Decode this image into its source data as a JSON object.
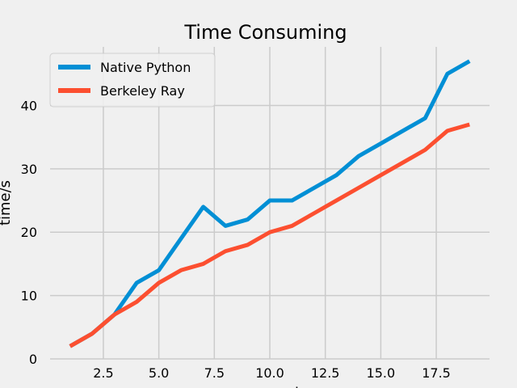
{
  "chart_data": {
    "type": "line",
    "title": "Time Consuming",
    "xlabel": "epoch",
    "ylabel": "time/s",
    "xlim": [
      0.1,
      19.9
    ],
    "ylim": [
      0,
      49.25
    ],
    "x_ticks": [
      2.5,
      5.0,
      7.5,
      10.0,
      12.5,
      15.0,
      17.5
    ],
    "x_tick_labels": [
      "2.5",
      "5.0",
      "7.5",
      "10.0",
      "12.5",
      "15.0",
      "17.5"
    ],
    "y_ticks": [
      0,
      10,
      20,
      30,
      40
    ],
    "y_tick_labels": [
      "0",
      "10",
      "20",
      "30",
      "40"
    ],
    "grid": true,
    "legend_position": "top-left",
    "x": [
      1,
      2,
      3,
      4,
      5,
      6,
      7,
      8,
      9,
      10,
      11,
      12,
      13,
      14,
      15,
      16,
      17,
      18,
      19
    ],
    "series": [
      {
        "name": "Native Python",
        "color": "#008fd5",
        "values": [
          2,
          4,
          7,
          12,
          14,
          19,
          24,
          21,
          22,
          25,
          25,
          27,
          29,
          32,
          34,
          36,
          38,
          45,
          47
        ]
      },
      {
        "name": "Berkeley Ray",
        "color": "#fc4f30",
        "values": [
          2,
          4,
          7,
          9,
          12,
          14,
          15,
          17,
          18,
          20,
          21,
          23,
          25,
          27,
          29,
          31,
          33,
          36,
          37
        ]
      }
    ]
  }
}
